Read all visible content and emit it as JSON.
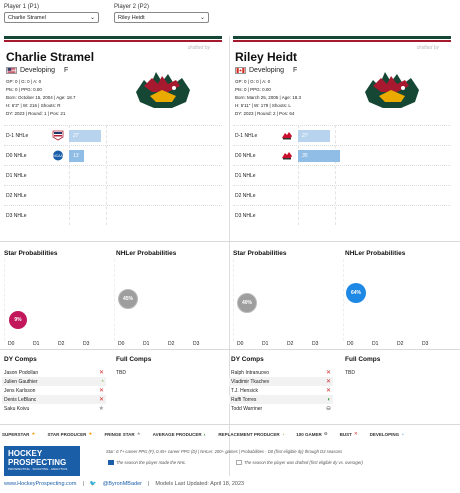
{
  "selectors": {
    "p1_label": "Player 1 (P1)",
    "p1_value": "Charlie Stramel",
    "p2_label": "Player 2 (P2)",
    "p2_value": "Riley Heidt"
  },
  "players": [
    {
      "drafted_by": "drafted by",
      "name": "Charlie Stramel",
      "status": "Developing",
      "position": "F",
      "flag": "usa",
      "stats": [
        "GP: 0 | G: 0 | A: 0",
        "Pts: 0 | PPG: 0.00",
        "Born: October 15, 2004 | Age: 18.7",
        "H: 6'3\" | W: 216 | Shoots: R",
        "DY: 2023 | Round: 1 | Pos: 21"
      ],
      "rows": [
        {
          "label": "D-1 NHLe",
          "value": "27",
          "bar": 0.32
        },
        {
          "label": "D0 NHLe",
          "value": "13",
          "bar": 0.15
        },
        {
          "label": "D1 NHLe",
          "value": "",
          "bar": 0
        },
        {
          "label": "D2 NHLe",
          "value": "",
          "bar": 0
        },
        {
          "label": "D3 NHLe",
          "value": "",
          "bar": 0
        }
      ],
      "star_prob": "9%",
      "nhler_prob": "45%",
      "dy_comps": [
        {
          "name": "Jason Podollan",
          "icon": "x"
        },
        {
          "name": "Julien Gauthier",
          "icon": "replacement"
        },
        {
          "name": "Jens Karlsson",
          "icon": "x"
        },
        {
          "name": "Denis LeBlanc",
          "icon": "x"
        },
        {
          "name": "Saku Koivu",
          "icon": "star"
        }
      ],
      "full_comps": "TBD"
    },
    {
      "drafted_by": "drafted by",
      "name": "Riley Heidt",
      "status": "Developing",
      "position": "F",
      "flag": "canada",
      "stats": [
        "GP: 0 | G: 0 | A: 0",
        "Pts: 0 | PPG: 0.00",
        "Born: March 25, 2005 | Age: 18.3",
        "H: 5'11\" | W: 179 | Shoots: L",
        "DY: 2023 | Round: 2 | Pos: 64"
      ],
      "rows": [
        {
          "label": "D-1 NHLe",
          "value": "27",
          "bar": 0.32
        },
        {
          "label": "D0 NHLe",
          "value": "35",
          "bar": 0.42
        },
        {
          "label": "D1 NHLe",
          "value": "",
          "bar": 0
        },
        {
          "label": "D2 NHLe",
          "value": "",
          "bar": 0
        },
        {
          "label": "D3 NHLe",
          "value": "",
          "bar": 0
        }
      ],
      "star_prob": "40%",
      "nhler_prob": "64%",
      "dy_comps": [
        {
          "name": "Ralph Intranuovo",
          "icon": "x"
        },
        {
          "name": "Vladimir Tkachev",
          "icon": "x"
        },
        {
          "name": "T.J. Hensick",
          "icon": "x"
        },
        {
          "name": "Raffi Torres",
          "icon": "average"
        },
        {
          "name": "Todd Warriner",
          "icon": "100game"
        }
      ],
      "full_comps": "TBD"
    }
  ],
  "section_titles": {
    "star": "Star Probabilities",
    "nhler": "NHLer Probabilities",
    "dy_comps": "DY Comps",
    "full_comps": "Full Comps"
  },
  "axis_labels": [
    "D0",
    "D1",
    "D2",
    "D3"
  ],
  "legend": [
    "SUPERSTAR",
    "STAR PRODUCER",
    "FRINGE STAR",
    "AVERAGE PRODUCER",
    "REPLACEMENT PRODUCER",
    "100 GAMER",
    "BUST",
    "DEVELOPING"
  ],
  "footer": {
    "brand_line1": "HOCKEY",
    "brand_line2": "PROSPECTING",
    "brand_tag": "PROSPECTING · SCOUTING · ANALYTICS",
    "note1": "Star: 0.7+ career PPG (F), 0.45+ career PPG (D) | NHLer: 200+ games | Probabilities - D0 (first eligible dy) through D3 seasons",
    "note2": "The season the player made the NHL",
    "note3": "The season the player was drafted (first eligible dy vs. overager)",
    "website": "www.HockeyProspecting.com",
    "twitter": "@ByronMBader",
    "updated": "Models Last Updated: April 18, 2023"
  },
  "colors": {
    "wild_green": "#154734",
    "wild_red": "#a6192e",
    "bar_light": "#b8d3ee",
    "circle_pink": "#c2185b",
    "circle_gray": "#9e9e9e",
    "circle_blue": "#1e88e5",
    "brand_blue": "#1b5ea8"
  }
}
